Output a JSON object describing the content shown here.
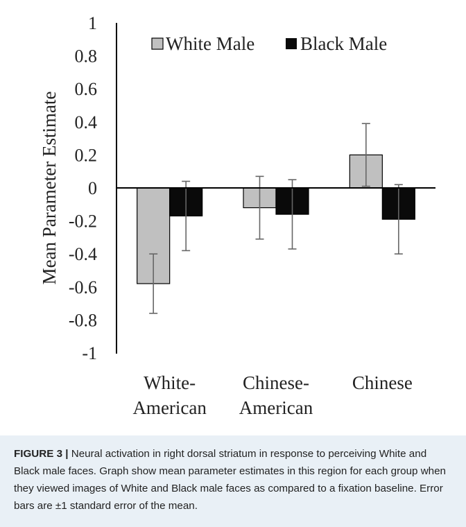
{
  "chart_data": {
    "type": "bar",
    "categories": [
      [
        "White-",
        "American"
      ],
      [
        "Chinese-",
        "American"
      ],
      [
        "Chinese",
        ""
      ]
    ],
    "series": [
      {
        "name": "White Male",
        "color": "#c0c0c0",
        "values": [
          -0.58,
          -0.12,
          0.2
        ],
        "errors": [
          0.18,
          0.19,
          0.19
        ]
      },
      {
        "name": "Black Male",
        "color": "#0a0a0a",
        "values": [
          -0.17,
          -0.16,
          -0.19
        ],
        "errors": [
          0.21,
          0.21,
          0.21
        ]
      }
    ],
    "ylabel": "Mean Parameter  Estimate",
    "ylim": [
      -1,
      1
    ],
    "yticks": [
      "1",
      "0.8",
      "0.6",
      "0.4",
      "0.2",
      "0",
      "-0.2",
      "-0.4",
      "-0.6",
      "-0.8",
      "-1"
    ],
    "legend_placement": "top",
    "grid": false
  },
  "caption": {
    "label": "FIGURE 3 |",
    "text": " Neural activation in right dorsal striatum in response to perceiving White and Black male faces. Graph show mean parameter estimates in this region for each group when they viewed images of White and Black male faces as compared to a fixation baseline. Error bars are ±1 standard error of the mean."
  }
}
